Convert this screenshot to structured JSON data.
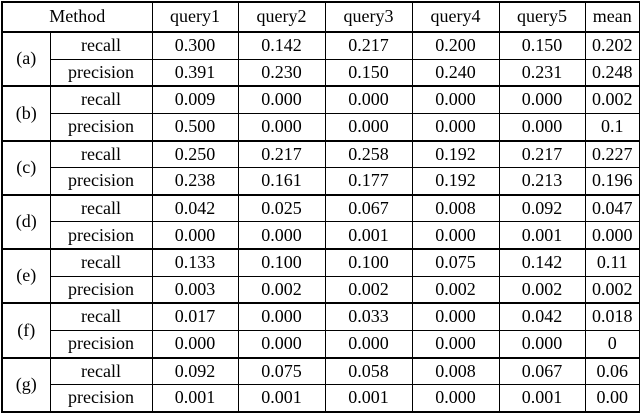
{
  "table": {
    "method_header": "Method",
    "columns": [
      "query1",
      "query2",
      "query3",
      "query4",
      "query5",
      "mean"
    ],
    "text_color": "#000000",
    "border_color": "#000000",
    "background_color": "#ffffff",
    "groups": [
      {
        "method": "(a)",
        "rows": [
          {
            "label": "recall",
            "values": [
              "0.300",
              "0.142",
              "0.217",
              "0.200",
              "0.150",
              "0.202"
            ],
            "bold_mean": false
          },
          {
            "label": "precision",
            "values": [
              "0.391",
              "0.230",
              "0.150",
              "0.240",
              "0.231",
              "0.248"
            ],
            "bold_mean": true
          }
        ]
      },
      {
        "method": "(b)",
        "rows": [
          {
            "label": "recall",
            "values": [
              "0.009",
              "0.000",
              "0.000",
              "0.000",
              "0.000",
              "0.002"
            ],
            "bold_mean": false
          },
          {
            "label": "precision",
            "values": [
              "0.500",
              "0.000",
              "0.000",
              "0.000",
              "0.000",
              "0.1"
            ],
            "bold_mean": false
          }
        ]
      },
      {
        "method": "(c)",
        "rows": [
          {
            "label": "recall",
            "values": [
              "0.250",
              "0.217",
              "0.258",
              "0.192",
              "0.217",
              "0.227"
            ],
            "bold_mean": true
          },
          {
            "label": "precision",
            "values": [
              "0.238",
              "0.161",
              "0.177",
              "0.192",
              "0.213",
              "0.196"
            ],
            "bold_mean": false
          }
        ]
      },
      {
        "method": "(d)",
        "rows": [
          {
            "label": "recall",
            "values": [
              "0.042",
              "0.025",
              "0.067",
              "0.008",
              "0.092",
              "0.047"
            ],
            "bold_mean": false
          },
          {
            "label": "precision",
            "values": [
              "0.000",
              "0.000",
              "0.001",
              "0.000",
              "0.001",
              "0.000"
            ],
            "bold_mean": false
          }
        ]
      },
      {
        "method": "(e)",
        "rows": [
          {
            "label": "recall",
            "values": [
              "0.133",
              "0.100",
              "0.100",
              "0.075",
              "0.142",
              "0.11"
            ],
            "bold_mean": false
          },
          {
            "label": "precision",
            "values": [
              "0.003",
              "0.002",
              "0.002",
              "0.002",
              "0.002",
              "0.002"
            ],
            "bold_mean": false
          }
        ]
      },
      {
        "method": "(f)",
        "rows": [
          {
            "label": "recall",
            "values": [
              "0.017",
              "0.000",
              "0.033",
              "0.000",
              "0.042",
              "0.018"
            ],
            "bold_mean": false
          },
          {
            "label": "precision",
            "values": [
              "0.000",
              "0.000",
              "0.000",
              "0.000",
              "0.000",
              "0"
            ],
            "bold_mean": false
          }
        ]
      },
      {
        "method": "(g)",
        "rows": [
          {
            "label": "recall",
            "values": [
              "0.092",
              "0.075",
              "0.058",
              "0.008",
              "0.067",
              "0.06"
            ],
            "bold_mean": false
          },
          {
            "label": "precision",
            "values": [
              "0.001",
              "0.001",
              "0.001",
              "0.000",
              "0.001",
              "0.00"
            ],
            "bold_mean": false
          }
        ]
      }
    ]
  }
}
